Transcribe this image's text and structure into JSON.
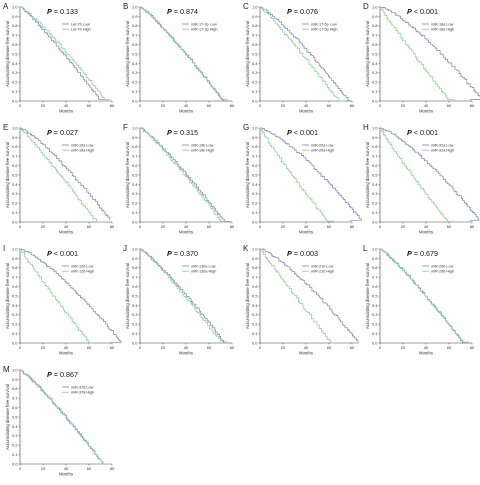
{
  "colors": {
    "low": "#7b82c8",
    "high": "#7fd190",
    "censor": "#555555",
    "axis": "#444444"
  },
  "chart_data": [
    {
      "type": "line",
      "label": "A",
      "p_prefix": "P",
      "p_op": "=",
      "p_num": "0.133",
      "series": [
        {
          "name": "Let-7b Low",
          "severity": 1.05
        },
        {
          "name": "Let-7b High",
          "severity": 0.95
        }
      ],
      "xlabel": "Months",
      "ylabel": "Accumulating disease free survival",
      "xlim": [
        0,
        80
      ],
      "ylim": [
        0,
        1.0
      ],
      "xticks": [
        "0",
        "20",
        "40",
        "60",
        "80"
      ],
      "yticks": [
        "0.0",
        "0.1",
        "0.2",
        "0.3",
        "0.4",
        "0.5",
        "0.6",
        "0.7",
        "0.8",
        "0.9",
        "1.0"
      ]
    },
    {
      "type": "line",
      "label": "B",
      "p_prefix": "P",
      "p_op": "=",
      "p_num": "0.874",
      "series": [
        {
          "name": "miR-17-3p Low",
          "severity": 1.0
        },
        {
          "name": "miR-17-3p High",
          "severity": 1.0
        }
      ],
      "xlabel": "Months",
      "ylabel": "Accumulating disease free survival",
      "xlim": [
        0,
        80
      ],
      "ylim": [
        0,
        1.0
      ],
      "xticks": [
        "0",
        "20",
        "40",
        "60",
        "80"
      ],
      "yticks": [
        "0.0",
        "0.1",
        "0.2",
        "0.3",
        "0.4",
        "0.5",
        "0.6",
        "0.7",
        "0.8",
        "0.9",
        "1.0"
      ]
    },
    {
      "type": "line",
      "label": "C",
      "p_prefix": "P",
      "p_op": "=",
      "p_num": "0.076",
      "series": [
        {
          "name": "miR-17-5p Low",
          "severity": 0.9
        },
        {
          "name": "miR-17-5p High",
          "severity": 1.1
        }
      ],
      "xlabel": "Months",
      "ylabel": "Accumulating disease free survival",
      "xlim": [
        0,
        80
      ],
      "ylim": [
        0,
        1.0
      ],
      "xticks": [
        "0",
        "20",
        "40",
        "60",
        "80"
      ],
      "yticks": [
        "0.0",
        "0.1",
        "0.2",
        "0.3",
        "0.4",
        "0.5",
        "0.6",
        "0.7",
        "0.8",
        "0.9",
        "1.0"
      ]
    },
    {
      "type": "line",
      "label": "D",
      "p_prefix": "P",
      "p_op": "<",
      "p_num": "0.001",
      "series": [
        {
          "name": "miR-18a Low",
          "severity": 0.7
        },
        {
          "name": "miR-18a High",
          "severity": 1.35
        }
      ],
      "xlabel": "Months",
      "ylabel": "Accumulating disease free survival",
      "xlim": [
        0,
        80
      ],
      "ylim": [
        0,
        1.0
      ],
      "xticks": [
        "0",
        "20",
        "40",
        "60",
        "80"
      ],
      "yticks": [
        "0.0",
        "0.1",
        "0.2",
        "0.3",
        "0.4",
        "0.5",
        "0.6",
        "0.7",
        "0.8",
        "0.9",
        "1.0"
      ]
    },
    {
      "type": "line",
      "label": "E",
      "p_prefix": "P",
      "p_op": "=",
      "p_num": "0.027",
      "series": [
        {
          "name": "miR-19a Low",
          "severity": 0.85
        },
        {
          "name": "miR-19a High",
          "severity": 1.15
        }
      ],
      "xlabel": "Months",
      "ylabel": "Accumulating disease free survival",
      "xlim": [
        0,
        80
      ],
      "ylim": [
        0,
        1.0
      ],
      "xticks": [
        "0",
        "20",
        "40",
        "60",
        "80"
      ],
      "yticks": [
        "0.0",
        "0.1",
        "0.2",
        "0.3",
        "0.4",
        "0.5",
        "0.6",
        "0.7",
        "0.8",
        "0.9",
        "1.0"
      ]
    },
    {
      "type": "line",
      "label": "F",
      "p_prefix": "P",
      "p_op": "=",
      "p_num": "0.315",
      "series": [
        {
          "name": "miR-19b Low",
          "severity": 0.97
        },
        {
          "name": "miR-19b High",
          "severity": 1.03
        }
      ],
      "xlabel": "Months",
      "ylabel": "Accumulating disease free survival",
      "xlim": [
        0,
        80
      ],
      "ylim": [
        0,
        1.0
      ],
      "xticks": [
        "0",
        "20",
        "40",
        "60",
        "80"
      ],
      "yticks": [
        "0.0",
        "0.1",
        "0.2",
        "0.3",
        "0.4",
        "0.5",
        "0.6",
        "0.7",
        "0.8",
        "0.9",
        "1.0"
      ]
    },
    {
      "type": "line",
      "label": "G",
      "p_prefix": "P",
      "p_op": "<",
      "p_num": "0.001",
      "series": [
        {
          "name": "miR-20a Low",
          "severity": 0.7
        },
        {
          "name": "miR-20a High",
          "severity": 1.4
        }
      ],
      "xlabel": "Months",
      "ylabel": "Accumulating disease free survival",
      "xlim": [
        0,
        80
      ],
      "ylim": [
        0,
        1.0
      ],
      "xticks": [
        "0",
        "20",
        "40",
        "60",
        "80"
      ],
      "yticks": [
        "0.0",
        "0.1",
        "0.2",
        "0.3",
        "0.4",
        "0.5",
        "0.6",
        "0.7",
        "0.8",
        "0.9",
        "1.0"
      ]
    },
    {
      "type": "line",
      "label": "H",
      "p_prefix": "P",
      "p_op": "<",
      "p_num": "0.001",
      "series": [
        {
          "name": "miR-92a Low",
          "severity": 0.72
        },
        {
          "name": "miR-92a High",
          "severity": 1.4
        }
      ],
      "xlabel": "Months",
      "ylabel": "Accumulating disease free survival",
      "xlim": [
        0,
        80
      ],
      "ylim": [
        0,
        1.0
      ],
      "xticks": [
        "0",
        "20",
        "40",
        "60",
        "80"
      ],
      "yticks": [
        "0.0",
        "0.1",
        "0.2",
        "0.3",
        "0.4",
        "0.5",
        "0.6",
        "0.7",
        "0.8",
        "0.9",
        "1.0"
      ]
    },
    {
      "type": "line",
      "label": "I",
      "p_prefix": "P",
      "p_op": "<",
      "p_num": "0.001",
      "series": [
        {
          "name": "miR-126 Low",
          "severity": 0.72
        },
        {
          "name": "miR-126 High",
          "severity": 1.35
        }
      ],
      "xlabel": "Months",
      "ylabel": "Accumulating disease free survival",
      "xlim": [
        0,
        80
      ],
      "ylim": [
        0,
        1.0
      ],
      "xticks": [
        "0",
        "20",
        "40",
        "60",
        "80"
      ],
      "yticks": [
        "0.0",
        "0.1",
        "0.2",
        "0.3",
        "0.4",
        "0.5",
        "0.6",
        "0.7",
        "0.8",
        "0.9",
        "1.0"
      ]
    },
    {
      "type": "line",
      "label": "J",
      "p_prefix": "P",
      "p_op": "=",
      "p_num": "0.370",
      "series": [
        {
          "name": "miR-130a Low",
          "severity": 0.97
        },
        {
          "name": "miR-130a High",
          "severity": 1.03
        }
      ],
      "xlabel": "Months",
      "ylabel": "Accumulating disease free survival",
      "xlim": [
        0,
        80
      ],
      "ylim": [
        0,
        1.0
      ],
      "xticks": [
        "0",
        "20",
        "40",
        "60",
        "80"
      ],
      "yticks": [
        "0.0",
        "0.1",
        "0.2",
        "0.3",
        "0.4",
        "0.5",
        "0.6",
        "0.7",
        "0.8",
        "0.9",
        "1.0"
      ]
    },
    {
      "type": "line",
      "label": "K",
      "p_prefix": "P",
      "p_op": "=",
      "p_num": "0.003",
      "series": [
        {
          "name": "miR-210 Low",
          "severity": 0.75
        },
        {
          "name": "miR-210 High",
          "severity": 1.3
        }
      ],
      "xlabel": "Months",
      "ylabel": "Accumulating disease free survival",
      "xlim": [
        0,
        80
      ],
      "ylim": [
        0,
        1.0
      ],
      "xticks": [
        "0",
        "20",
        "40",
        "60",
        "80"
      ],
      "yticks": [
        "0.0",
        "0.1",
        "0.2",
        "0.3",
        "0.4",
        "0.5",
        "0.6",
        "0.7",
        "0.8",
        "0.9",
        "1.0"
      ]
    },
    {
      "type": "line",
      "label": "L",
      "p_prefix": "P",
      "p_op": "=",
      "p_num": "0.679",
      "series": [
        {
          "name": "miR-296 Low",
          "severity": 1.0
        },
        {
          "name": "miR-296 High",
          "severity": 1.0
        }
      ],
      "xlabel": "Months",
      "ylabel": "Accumulating disease free survival",
      "xlim": [
        0,
        80
      ],
      "ylim": [
        0,
        1.0
      ],
      "xticks": [
        "0",
        "20",
        "40",
        "60",
        "80"
      ],
      "yticks": [
        "0.0",
        "0.1",
        "0.2",
        "0.3",
        "0.4",
        "0.5",
        "0.6",
        "0.7",
        "0.8",
        "0.9",
        "1.0"
      ]
    },
    {
      "type": "line",
      "label": "M",
      "p_prefix": "P",
      "p_op": "=",
      "p_num": "0.867",
      "series": [
        {
          "name": "miR-378 Low",
          "severity": 1.0
        },
        {
          "name": "miR-378 High",
          "severity": 1.0
        }
      ],
      "xlabel": "Months",
      "ylabel": "Accumulating disease free survival",
      "xlim": [
        0,
        80
      ],
      "ylim": [
        0,
        1.0
      ],
      "xticks": [
        "0",
        "20",
        "40",
        "60",
        "80"
      ],
      "yticks": [
        "0.0",
        "0.1",
        "0.2",
        "0.3",
        "0.4",
        "0.5",
        "0.6",
        "0.7",
        "0.8",
        "0.9",
        "1.0"
      ]
    }
  ]
}
